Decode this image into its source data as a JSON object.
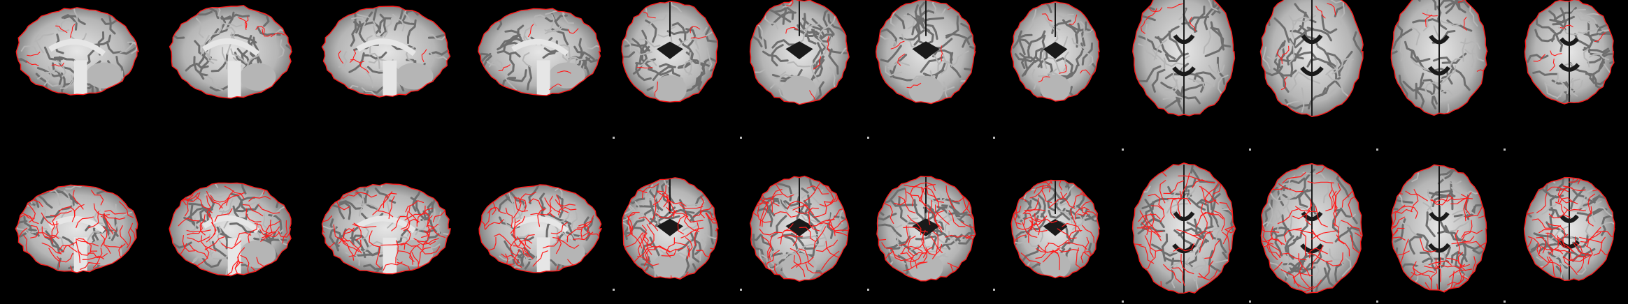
{
  "figure": {
    "background": "#000000",
    "overlay_color": "#ff1a1a",
    "tissue_colors": {
      "bright": "#e6e6e6",
      "mid": "#b5b5b5",
      "dark": "#6e6e6e",
      "csf": "#1a1a1a"
    },
    "rows": [
      {
        "name": "brain-mask-outline-row",
        "overlay_style": "outline",
        "panels": [
          {
            "view": "sagittal"
          },
          {
            "view": "sagittal"
          },
          {
            "view": "sagittal"
          },
          {
            "view": "sagittal"
          },
          {
            "view": "coronal"
          },
          {
            "view": "coronal"
          },
          {
            "view": "coronal"
          },
          {
            "view": "coronal"
          },
          {
            "view": "axial"
          },
          {
            "view": "axial"
          },
          {
            "view": "axial"
          },
          {
            "view": "axial"
          }
        ]
      },
      {
        "name": "tissue-contour-row",
        "overlay_style": "contour",
        "panels": [
          {
            "view": "sagittal"
          },
          {
            "view": "sagittal"
          },
          {
            "view": "sagittal"
          },
          {
            "view": "sagittal"
          },
          {
            "view": "coronal"
          },
          {
            "view": "coronal"
          },
          {
            "view": "coronal"
          },
          {
            "view": "coronal"
          },
          {
            "view": "axial"
          },
          {
            "view": "axial"
          },
          {
            "view": "axial"
          },
          {
            "view": "axial"
          }
        ]
      }
    ]
  }
}
